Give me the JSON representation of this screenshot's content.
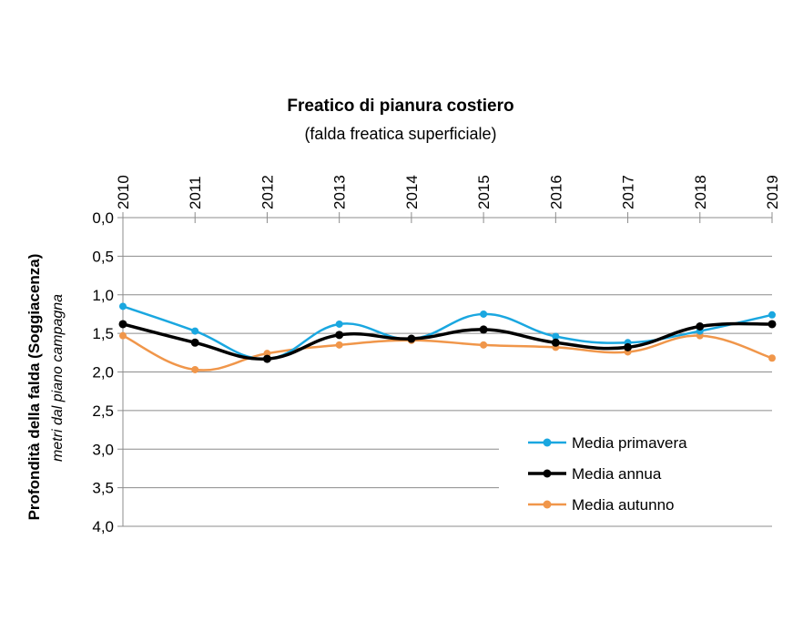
{
  "chart_data": {
    "type": "line",
    "title": "Freatico di pianura  costiero",
    "subtitle": "(falda freatica superficiale)",
    "ylabel": "Profondità della falda (Soggiacenza)",
    "ylabel_sub": "metri dal piano campagna",
    "categories": [
      "2010",
      "2011",
      "2012",
      "2013",
      "2014",
      "2015",
      "2016",
      "2017",
      "2018",
      "2019"
    ],
    "x_axis_position": "top",
    "y_inverted": true,
    "ylim": [
      0,
      4
    ],
    "yticks": [
      0,
      0.5,
      1,
      1.5,
      2,
      2.5,
      3,
      3.5,
      4
    ],
    "ytick_labels": [
      "0,0",
      "0,5",
      "1,0",
      "1,5",
      "2,0",
      "2,5",
      "3,0",
      "3,5",
      "4,0"
    ],
    "grid": true,
    "legend_position": "bottom-right",
    "series": [
      {
        "name": "Media primavera",
        "color": "#1AA7E0",
        "values": [
          1.15,
          1.47,
          1.83,
          1.38,
          1.57,
          1.25,
          1.54,
          1.62,
          1.47,
          1.26
        ]
      },
      {
        "name": "Media annua",
        "color": "#000000",
        "values": [
          1.38,
          1.62,
          1.83,
          1.52,
          1.57,
          1.45,
          1.62,
          1.68,
          1.41,
          1.38
        ]
      },
      {
        "name": "Media autunno",
        "color": "#F0964A",
        "values": [
          1.53,
          1.97,
          1.76,
          1.65,
          1.59,
          1.65,
          1.68,
          1.74,
          1.53,
          1.82
        ]
      }
    ]
  }
}
